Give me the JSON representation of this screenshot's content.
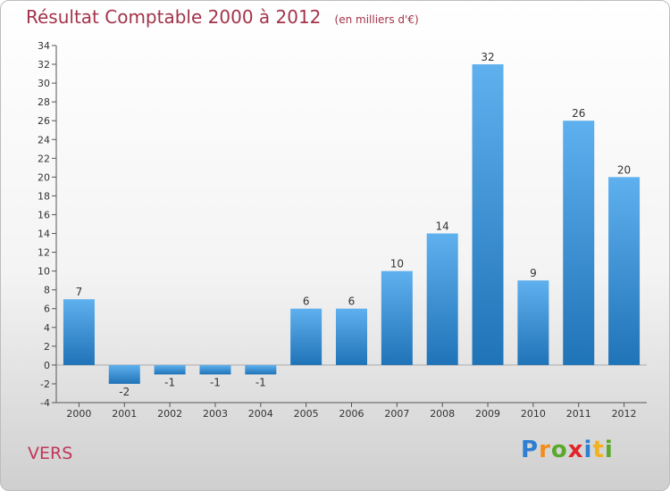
{
  "title": "Résultat Comptable 2000 à 2012",
  "subtitle": "(en milliers d'€)",
  "commune": "VERS",
  "logo": {
    "letters": [
      {
        "char": "P",
        "color": "#2e7fd1"
      },
      {
        "char": "r",
        "color": "#f28c1e"
      },
      {
        "char": "o",
        "color": "#5aa92c"
      },
      {
        "char": "x",
        "color": "#e0262a"
      },
      {
        "char": "i",
        "color": "#2e7fd1"
      },
      {
        "char": "t",
        "color": "#f2b21e"
      },
      {
        "char": "i",
        "color": "#5aa92c"
      }
    ]
  },
  "chart_data": {
    "type": "bar",
    "categories": [
      "2000",
      "2001",
      "2002",
      "2003",
      "2004",
      "2005",
      "2006",
      "2007",
      "2008",
      "2009",
      "2010",
      "2011",
      "2012"
    ],
    "values": [
      7,
      -2,
      -1,
      -1,
      -1,
      6,
      6,
      10,
      14,
      32,
      9,
      26,
      20
    ],
    "labels": [
      "7",
      "-2",
      "-1",
      "-1",
      "-1",
      "6",
      "6",
      "10",
      "14",
      "32",
      "9",
      "26",
      "20"
    ],
    "ylim": [
      -4,
      34
    ],
    "yticks": [
      -4,
      -2,
      0,
      2,
      4,
      6,
      8,
      10,
      12,
      14,
      16,
      18,
      20,
      22,
      24,
      26,
      28,
      30,
      32,
      34
    ],
    "grid": false,
    "colors": {
      "bar_light": "#5fb0ee",
      "bar_dark": "#1f73b7"
    }
  }
}
